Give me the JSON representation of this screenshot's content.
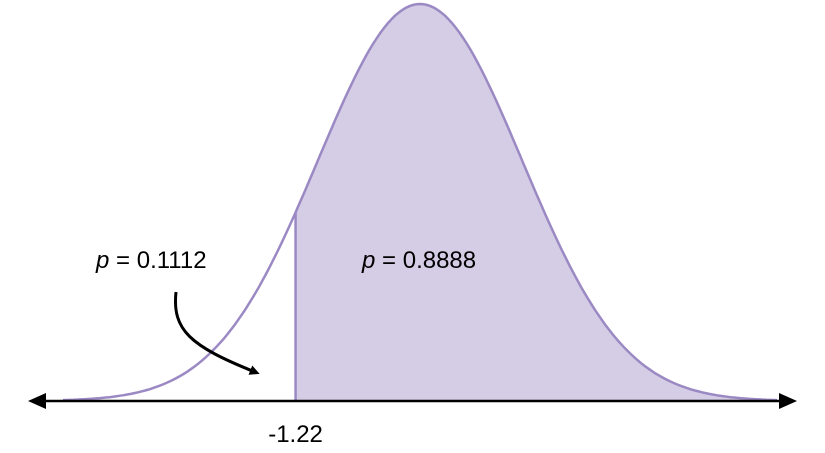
{
  "chart_data": {
    "type": "area",
    "distribution": "standard normal",
    "cutoff": -1.22,
    "tick_labels": [
      "-1.22"
    ],
    "regions": [
      {
        "side": "left",
        "p_symbol": "p",
        "p_value": "0.1112",
        "shaded": false
      },
      {
        "side": "right",
        "p_symbol": "p",
        "p_value": "0.8888",
        "shaded": true
      }
    ],
    "x_range": [
      -3.5,
      3.5
    ],
    "grid": false,
    "colors": {
      "curve": "#9b89c4",
      "shade": "#d5cde5",
      "axis": "#000000"
    }
  }
}
